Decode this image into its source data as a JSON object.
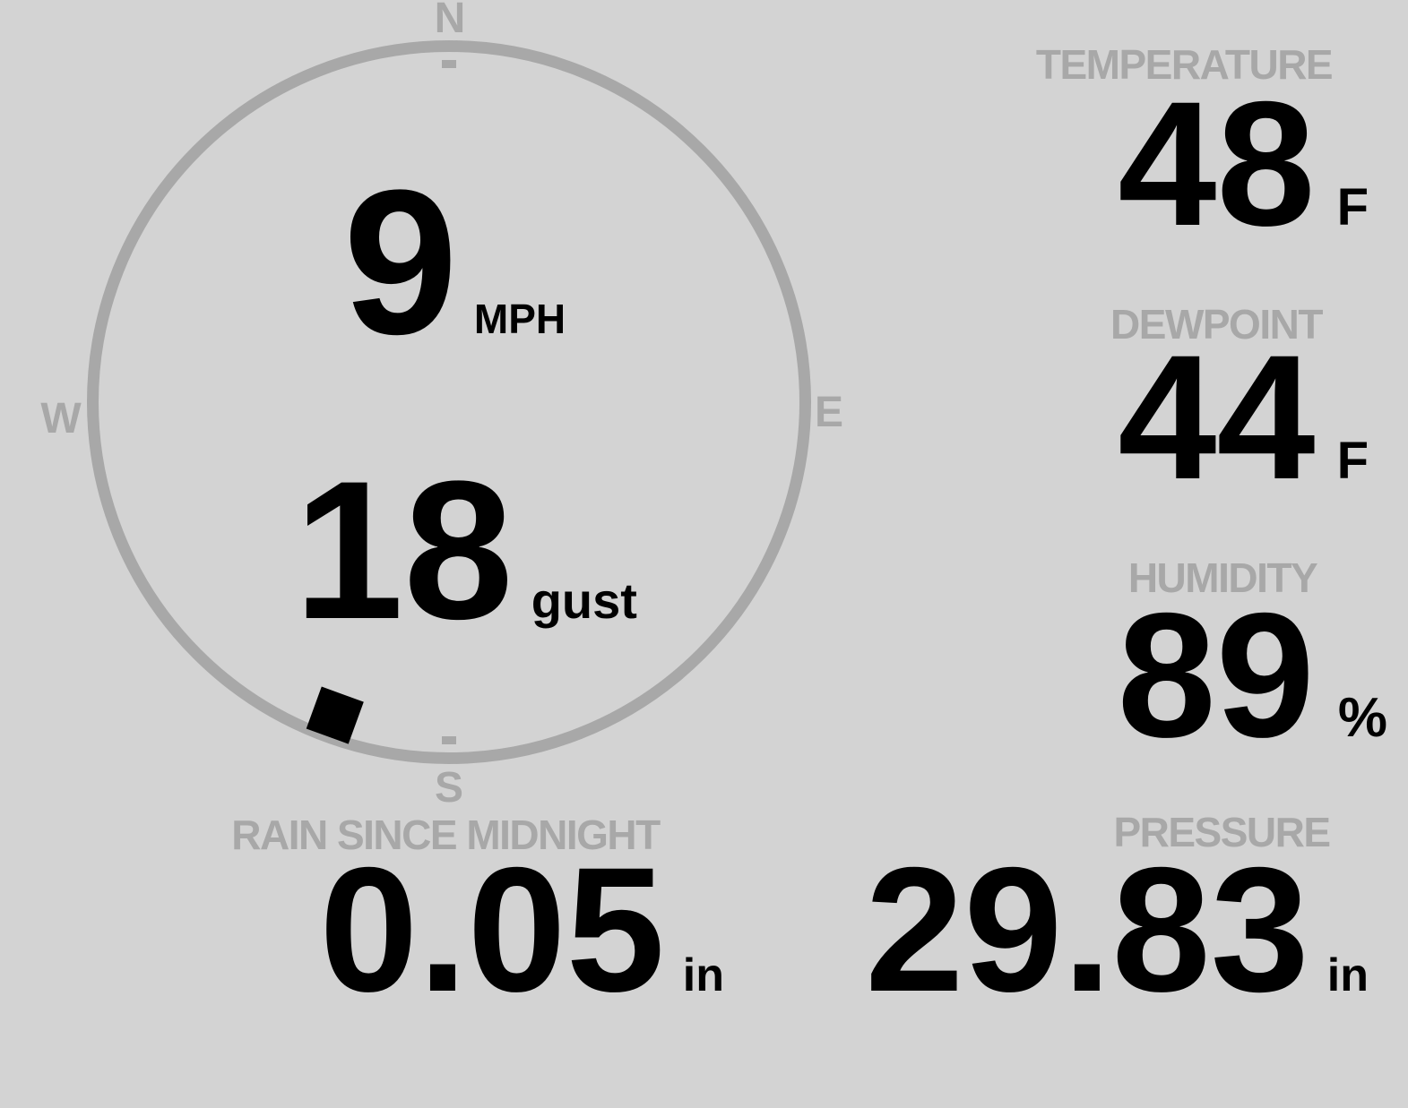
{
  "theme": {
    "background": "#d3d3d3",
    "muted_gray": "#a8a8a8",
    "ink": "#000000"
  },
  "wind": {
    "speed": "9",
    "speed_unit": "MPH",
    "gust": "18",
    "gust_unit": "gust",
    "direction_degrees": 200,
    "compass": {
      "north": "N",
      "east": "E",
      "south": "S",
      "west": "W"
    }
  },
  "readings": {
    "temperature": {
      "label": "TEMPERATURE",
      "value": "48",
      "unit": "F"
    },
    "dewpoint": {
      "label": "DEWPOINT",
      "value": "44",
      "unit": "F"
    },
    "humidity": {
      "label": "HUMIDITY",
      "value": "89",
      "unit": "%"
    },
    "rain": {
      "label": "RAIN SINCE MIDNIGHT",
      "value": "0.05",
      "unit": "in"
    },
    "pressure": {
      "label": "PRESSURE",
      "value": "29.83",
      "unit": "in"
    }
  }
}
